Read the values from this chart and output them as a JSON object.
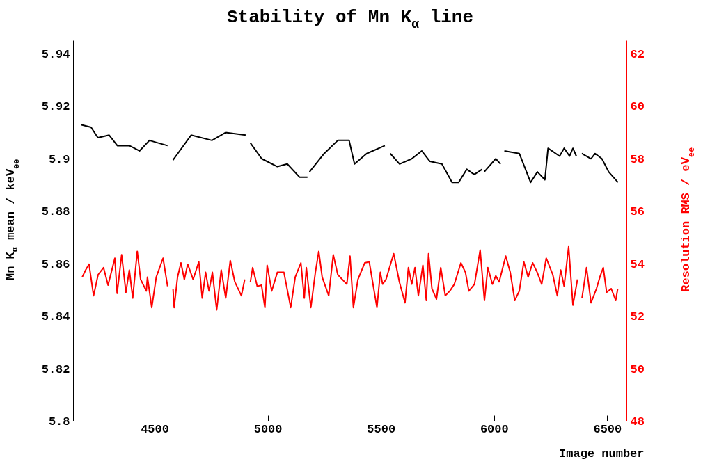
{
  "chart_data": {
    "type": "line",
    "title": "Stability of Mn K$_{α}$ line",
    "xlabel": "Image number",
    "ylabel": "Mn K$_{α}$ mean / keV$_{ee}$",
    "y2label": "Resolution RMS / eV$_{ee}$",
    "xlim": [
      4140,
      6585
    ],
    "xticks": [
      4500,
      5000,
      5500,
      6000,
      6500
    ],
    "ylim": [
      5.8,
      5.945
    ],
    "yticks": [
      5.8,
      5.82,
      5.84,
      5.86,
      5.88,
      5.9,
      5.92,
      5.94
    ],
    "y2lim": [
      48,
      62.5
    ],
    "y2ticks": [
      48,
      50,
      52,
      54,
      56,
      58,
      60,
      62
    ],
    "grid": false,
    "marker": "none",
    "line_style": "solid",
    "series": [
      {
        "color": "#000000",
        "axis": "y",
        "x": [
          4173,
          4218,
          4248,
          4298,
          4334,
          4387,
          4432,
          4476,
          4515,
          4556,
          4568,
          4580,
          4660,
          4752,
          4812,
          4901,
          4911,
          4922,
          4972,
          5041,
          5085,
          5139,
          5174,
          5178,
          5183,
          5248,
          5308,
          5358,
          5382,
          5436,
          5516,
          5528,
          5540,
          5581,
          5635,
          5679,
          5715,
          5768,
          5813,
          5842,
          5878,
          5911,
          5946,
          5950,
          5955,
          6006,
          6027,
          6035,
          6044,
          6110,
          6160,
          6190,
          6223,
          6237,
          6288,
          6308,
          6332,
          6347,
          6362,
          6374,
          6386,
          6427,
          6445,
          6475,
          6505,
          6546
        ],
        "values": [
          5.913,
          5.912,
          5.908,
          5.909,
          5.905,
          5.905,
          5.903,
          5.907,
          5.906,
          5.905,
          null,
          5.8995,
          5.909,
          5.907,
          5.91,
          5.909,
          null,
          5.906,
          5.9,
          5.897,
          5.898,
          5.893,
          5.893,
          null,
          5.895,
          5.902,
          5.907,
          5.907,
          5.898,
          5.902,
          5.905,
          null,
          5.902,
          5.898,
          5.9,
          5.903,
          5.899,
          5.898,
          5.891,
          5.891,
          5.896,
          5.894,
          5.896,
          null,
          5.895,
          5.9,
          5.898,
          null,
          5.903,
          5.902,
          5.891,
          5.895,
          5.892,
          5.904,
          5.901,
          5.904,
          5.901,
          5.904,
          5.901,
          null,
          5.902,
          5.9,
          5.902,
          5.9,
          5.895,
          5.891
        ]
      },
      {
        "color": "#ff0000",
        "axis": "y2",
        "x": [
          4179,
          4194,
          4209,
          4229,
          4249,
          4273,
          4293,
          4323,
          4333,
          4353,
          4372,
          4387,
          4402,
          4422,
          4437,
          4462,
          4467,
          4486,
          4506,
          4536,
          4556,
          4568,
          4580,
          4585,
          4600,
          4615,
          4630,
          4645,
          4669,
          4694,
          4709,
          4724,
          4739,
          4754,
          4773,
          4793,
          4813,
          4833,
          4853,
          4882,
          4897,
          4910,
          4922,
          4932,
          4952,
          4971,
          4986,
          4996,
          5016,
          5041,
          5070,
          5100,
          5120,
          5145,
          5160,
          5169,
          5189,
          5209,
          5224,
          5239,
          5268,
          5288,
          5308,
          5348,
          5362,
          5377,
          5397,
          5427,
          5447,
          5481,
          5496,
          5506,
          5521,
          5555,
          5580,
          5605,
          5620,
          5635,
          5649,
          5664,
          5684,
          5699,
          5709,
          5724,
          5744,
          5763,
          5783,
          5803,
          5823,
          5852,
          5872,
          5887,
          5912,
          5937,
          5956,
          5971,
          5991,
          6006,
          6021,
          6050,
          6070,
          6090,
          6110,
          6130,
          6149,
          6169,
          6189,
          6209,
          6229,
          6258,
          6278,
          6293,
          6308,
          6328,
          6347,
          6367,
          6377,
          6387,
          6407,
          6427,
          6451,
          6466,
          6481,
          6496,
          6516,
          6536,
          6545
        ],
        "values": [
          53.49,
          53.76,
          53.98,
          52.78,
          53.58,
          53.85,
          53.18,
          54.21,
          52.87,
          54.34,
          52.91,
          53.76,
          52.69,
          54.47,
          53.4,
          52.96,
          53.49,
          52.33,
          53.49,
          54.21,
          53.14,
          null,
          53.05,
          52.33,
          53.49,
          54.03,
          53.4,
          53.98,
          53.4,
          54.07,
          52.69,
          53.67,
          52.96,
          53.67,
          52.24,
          53.76,
          52.69,
          54.12,
          53.31,
          52.78,
          53.4,
          null,
          53.31,
          53.85,
          53.14,
          53.18,
          52.33,
          53.94,
          52.96,
          53.67,
          53.67,
          52.33,
          53.49,
          54.03,
          52.69,
          53.85,
          52.33,
          53.67,
          54.47,
          53.49,
          52.78,
          54.34,
          53.58,
          53.22,
          54.29,
          52.33,
          53.4,
          54.03,
          54.07,
          52.33,
          53.67,
          53.22,
          53.4,
          54.38,
          53.31,
          52.51,
          53.85,
          53.22,
          53.85,
          52.78,
          53.94,
          52.6,
          54.38,
          53.05,
          52.65,
          53.85,
          52.78,
          52.96,
          53.22,
          54.03,
          53.67,
          52.96,
          53.22,
          54.52,
          52.6,
          53.85,
          53.22,
          53.54,
          53.31,
          54.29,
          53.67,
          52.6,
          52.96,
          54.07,
          53.49,
          54.03,
          53.67,
          53.22,
          54.21,
          53.58,
          52.78,
          53.76,
          53.14,
          54.65,
          52.42,
          53.4,
          null,
          52.69,
          53.85,
          52.51,
          53.05,
          53.49,
          53.85,
          52.91,
          53.05,
          52.6,
          53.05
        ]
      }
    ]
  }
}
